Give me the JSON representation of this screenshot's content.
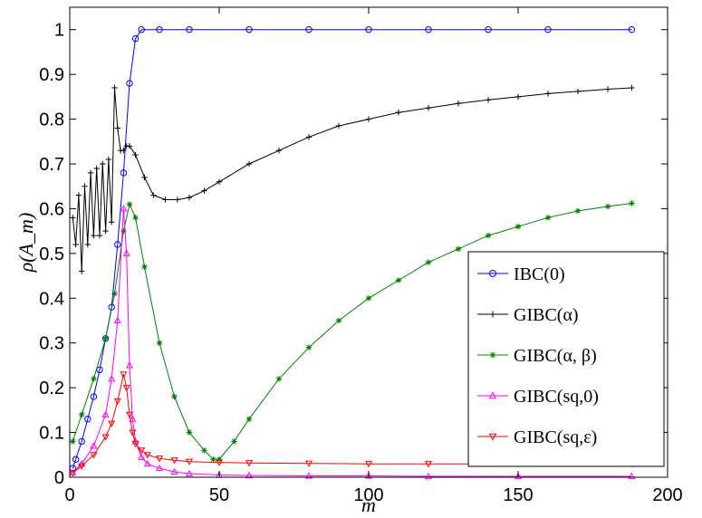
{
  "chart_data": {
    "type": "line",
    "xlabel": "m",
    "ylabel": "ρ(A_m)",
    "xlim": [
      0,
      200
    ],
    "ylim": [
      0,
      1.05
    ],
    "xticks": [
      0,
      50,
      100,
      150,
      200
    ],
    "xtick_labels": [
      "0",
      "50",
      "100",
      "150",
      "200"
    ],
    "yticks": [
      0,
      0.1,
      0.2,
      0.3,
      0.4,
      0.5,
      0.6,
      0.7,
      0.8,
      0.9,
      1
    ],
    "ytick_labels": [
      "0",
      "0.1",
      "0.2",
      "0.3",
      "0.4",
      "0.5",
      "0.6",
      "0.7",
      "0.8",
      "0.9",
      "1"
    ],
    "grid": false,
    "legend_position": "lower-right",
    "series": [
      {
        "name": "IBC(0)",
        "color": "#0000ff",
        "marker": "circle",
        "x": [
          1,
          2,
          4,
          6,
          8,
          10,
          12,
          14,
          16,
          18,
          20,
          22,
          24,
          30,
          40,
          60,
          80,
          100,
          120,
          140,
          160,
          188
        ],
        "y": [
          0.02,
          0.04,
          0.08,
          0.13,
          0.18,
          0.24,
          0.31,
          0.38,
          0.52,
          0.68,
          0.88,
          0.98,
          1.0,
          1.0,
          1.0,
          1.0,
          1.0,
          1.0,
          1.0,
          1.0,
          1.0,
          1.0
        ]
      },
      {
        "name": "GIBC(α)",
        "color": "#000000",
        "marker": "plus",
        "x": [
          1,
          2,
          3,
          4,
          5,
          6,
          7,
          8,
          9,
          10,
          11,
          12,
          13,
          14,
          15,
          16,
          17,
          18,
          19,
          20,
          22,
          25,
          28,
          32,
          36,
          40,
          45,
          50,
          60,
          70,
          80,
          90,
          100,
          110,
          120,
          130,
          140,
          150,
          160,
          170,
          180,
          188
        ],
        "y": [
          0.58,
          0.52,
          0.63,
          0.46,
          0.65,
          0.52,
          0.68,
          0.54,
          0.69,
          0.54,
          0.7,
          0.55,
          0.71,
          0.57,
          0.87,
          0.78,
          0.73,
          0.73,
          0.74,
          0.74,
          0.72,
          0.67,
          0.63,
          0.62,
          0.62,
          0.625,
          0.64,
          0.66,
          0.7,
          0.73,
          0.76,
          0.785,
          0.8,
          0.815,
          0.825,
          0.835,
          0.843,
          0.85,
          0.857,
          0.862,
          0.867,
          0.87
        ]
      },
      {
        "name": "GIBC(α, β)",
        "color": "#008000",
        "marker": "star",
        "x": [
          1,
          4,
          8,
          12,
          15,
          18,
          20,
          22,
          25,
          30,
          35,
          40,
          45,
          48,
          50,
          55,
          60,
          70,
          80,
          90,
          100,
          110,
          120,
          130,
          140,
          150,
          160,
          170,
          180,
          188
        ],
        "y": [
          0.08,
          0.14,
          0.22,
          0.31,
          0.41,
          0.55,
          0.61,
          0.58,
          0.47,
          0.3,
          0.18,
          0.1,
          0.06,
          0.04,
          0.04,
          0.08,
          0.13,
          0.22,
          0.29,
          0.35,
          0.4,
          0.44,
          0.48,
          0.51,
          0.54,
          0.56,
          0.58,
          0.595,
          0.605,
          0.612
        ]
      },
      {
        "name": "GIBC(sq,0)",
        "color": "#ff00ff",
        "marker": "triangle-up",
        "x": [
          1,
          4,
          8,
          12,
          14,
          16,
          18,
          19,
          20,
          21,
          22,
          24,
          26,
          30,
          35,
          40,
          50,
          60,
          80,
          100,
          120,
          150,
          188
        ],
        "y": [
          0.01,
          0.03,
          0.07,
          0.14,
          0.22,
          0.35,
          0.6,
          0.5,
          0.25,
          0.13,
          0.08,
          0.045,
          0.03,
          0.02,
          0.012,
          0.008,
          0.005,
          0.004,
          0.003,
          0.003,
          0.002,
          0.002,
          0.002
        ]
      },
      {
        "name": "GIBC(sq,ε)",
        "color": "#ff0000",
        "marker": "triangle-down",
        "x": [
          1,
          4,
          8,
          12,
          14,
          16,
          18,
          19,
          20,
          21,
          22,
          24,
          26,
          30,
          35,
          40,
          50,
          60,
          80,
          100,
          120,
          150,
          188
        ],
        "y": [
          0.01,
          0.025,
          0.05,
          0.09,
          0.12,
          0.17,
          0.23,
          0.2,
          0.14,
          0.1,
          0.075,
          0.06,
          0.05,
          0.042,
          0.038,
          0.035,
          0.033,
          0.032,
          0.031,
          0.03,
          0.03,
          0.03,
          0.03
        ]
      }
    ]
  }
}
